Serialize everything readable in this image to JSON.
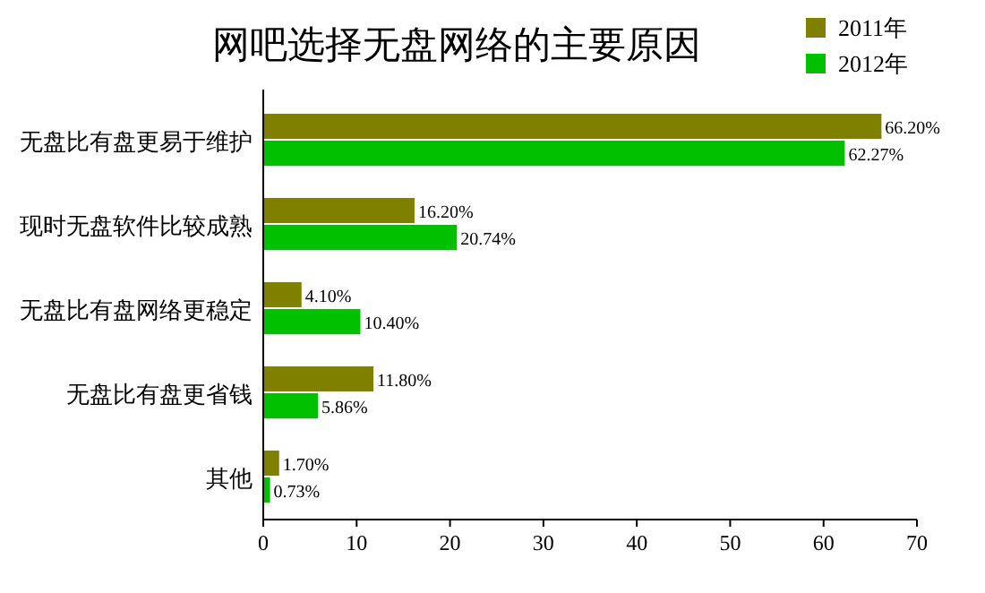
{
  "chart_data": {
    "type": "bar",
    "orientation": "horizontal",
    "title": "网吧选择无盘网络的主要原因",
    "categories": [
      "无盘比有盘更易于维护",
      "现时无盘软件比较成熟",
      "无盘比有盘网络更稳定",
      "无盘比有盘更省钱",
      "其他"
    ],
    "series": [
      {
        "name": "2011年",
        "color": "#808000",
        "values": [
          66.2,
          16.2,
          4.1,
          11.8,
          1.7
        ],
        "value_labels": [
          "66.20%",
          "16.20%",
          "4.10%",
          "11.80%",
          "1.70%"
        ]
      },
      {
        "name": "2012年",
        "color": "#00c000",
        "values": [
          62.27,
          20.74,
          10.4,
          5.86,
          0.73
        ],
        "value_labels": [
          "62.27%",
          "20.74%",
          "10.40%",
          "5.86%",
          "0.73%"
        ]
      }
    ],
    "xlim": [
      0,
      70
    ],
    "xticks": [
      0,
      10,
      20,
      30,
      40,
      50,
      60,
      70
    ],
    "legend": "top right",
    "grid": false
  }
}
